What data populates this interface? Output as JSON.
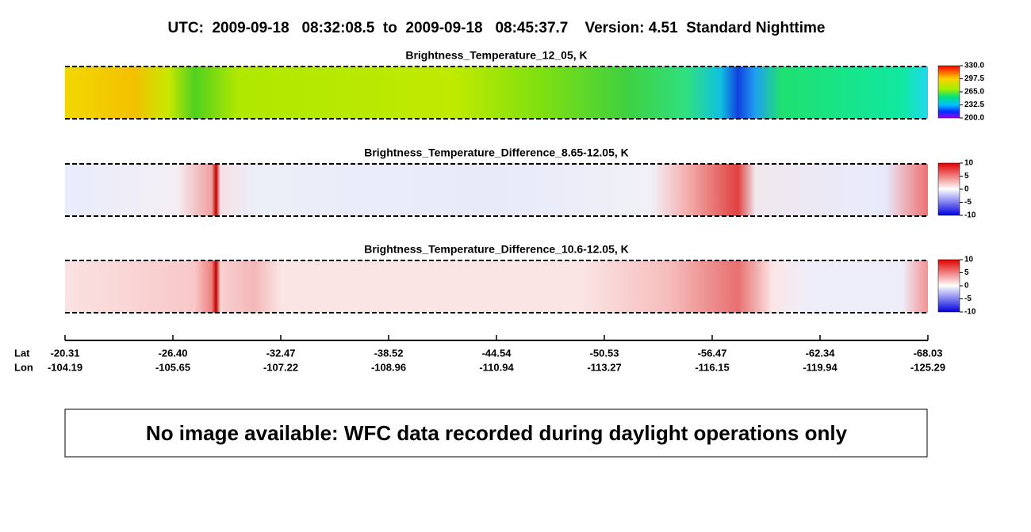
{
  "title": "UTC:  2009-09-18   08:32:08.5  to  2009-09-18   08:45:37.7    Version: 4.51  Standard Nighttime",
  "panels": [
    {
      "title": "Brightness_Temperature_12_05, K",
      "colorbar": {
        "lim": [
          200,
          330
        ],
        "ticks": [
          {
            "value": 330,
            "label": "330.0"
          },
          {
            "value": 297.5,
            "label": "297.5"
          },
          {
            "value": 265,
            "label": "265.0"
          },
          {
            "value": 232.5,
            "label": "232.5"
          },
          {
            "value": 200,
            "label": "200.0"
          }
        ]
      }
    },
    {
      "title": "Brightness_Temperature_Difference_8.65-12.05, K",
      "colorbar": {
        "lim": [
          -10,
          10
        ],
        "ticks": [
          10,
          5,
          0,
          -5,
          -10
        ]
      }
    },
    {
      "title": "Brightness_Temperature_Difference_10.6-12.05, K",
      "colorbar": {
        "lim": [
          -10,
          10
        ],
        "ticks": [
          10,
          5,
          0,
          -5,
          -10
        ]
      }
    }
  ],
  "axis": {
    "lat_label": "Lat",
    "lon_label": "Lon",
    "lat": [
      "-20.31",
      "-26.40",
      "-32.47",
      "-38.52",
      "-44.54",
      "-50.53",
      "-56.47",
      "-62.34",
      "-68.03"
    ],
    "lon": [
      "-104.19",
      "-105.65",
      "-107.22",
      "-108.96",
      "-110.94",
      "-113.27",
      "-116.15",
      "-119.94",
      "-125.29"
    ]
  },
  "message": "No image available: WFC data recorded during daylight operations only"
}
